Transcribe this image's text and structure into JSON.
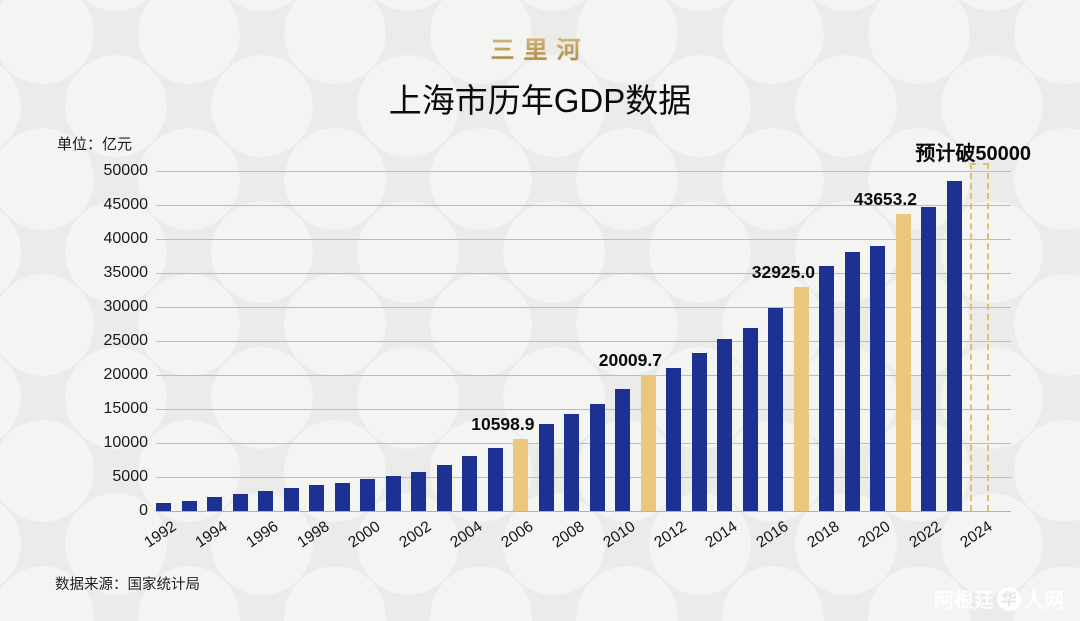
{
  "brand": "三里河",
  "title": "上海市历年GDP数据",
  "unit_label": "单位：亿元",
  "source": "数据来源：国家统计局",
  "watermark": {
    "text_before_logo": "阿根廷",
    "logo_icon": "globe-icon",
    "logo_char": "华",
    "text_after_logo": "人网"
  },
  "colors": {
    "bar_blue": "#1c3191",
    "bar_gold": "#eac77d",
    "predicted_dash_gold": "#e2bd74",
    "gridline": "#b9b9d4",
    "brand_gold": "#c9a75f",
    "background": "#ebebea"
  },
  "chart_data": {
    "type": "bar",
    "title": "上海市历年GDP数据",
    "ylabel": "单位：亿元",
    "xlabel": "",
    "ylim": [
      0,
      50000
    ],
    "grid": "horizontal",
    "legend": "none",
    "x": [
      1992,
      1993,
      1994,
      1995,
      1996,
      1997,
      1998,
      1999,
      2000,
      2001,
      2002,
      2003,
      2004,
      2005,
      2006,
      2007,
      2008,
      2009,
      2010,
      2011,
      2012,
      2013,
      2014,
      2015,
      2016,
      2017,
      2018,
      2019,
      2020,
      2021,
      2022,
      2023
    ],
    "values": [
      1114.3,
      1519.2,
      1990.9,
      2499.4,
      2957.6,
      3438.8,
      3801.1,
      4188.7,
      4771.2,
      5210.1,
      5741.0,
      6694.2,
      8072.8,
      9247.7,
      10598.9,
      12750,
      14300,
      15750,
      17920,
      20009.7,
      21100,
      23280,
      25250,
      26980,
      29887.0,
      32925.0,
      36011.8,
      38155.3,
      38963.3,
      43653.2,
      44652.8,
      48522.2
    ],
    "highlight_years": [
      2006,
      2011,
      2017,
      2021
    ],
    "point_labels": {
      "2006": "10598.9",
      "2011": "20009.7",
      "2017": "32925.0",
      "2021": "43653.2"
    },
    "predicted": {
      "year": 2024,
      "label": "预计破50000",
      "draw_value": 51200
    },
    "y_ticks": [
      0,
      5000,
      10000,
      15000,
      20000,
      25000,
      30000,
      35000,
      40000,
      45000,
      50000
    ],
    "x_tick_years": [
      1992,
      1994,
      1996,
      1998,
      2000,
      2002,
      2004,
      2006,
      2008,
      2010,
      2012,
      2014,
      2016,
      2018,
      2020,
      2022,
      2024
    ]
  }
}
